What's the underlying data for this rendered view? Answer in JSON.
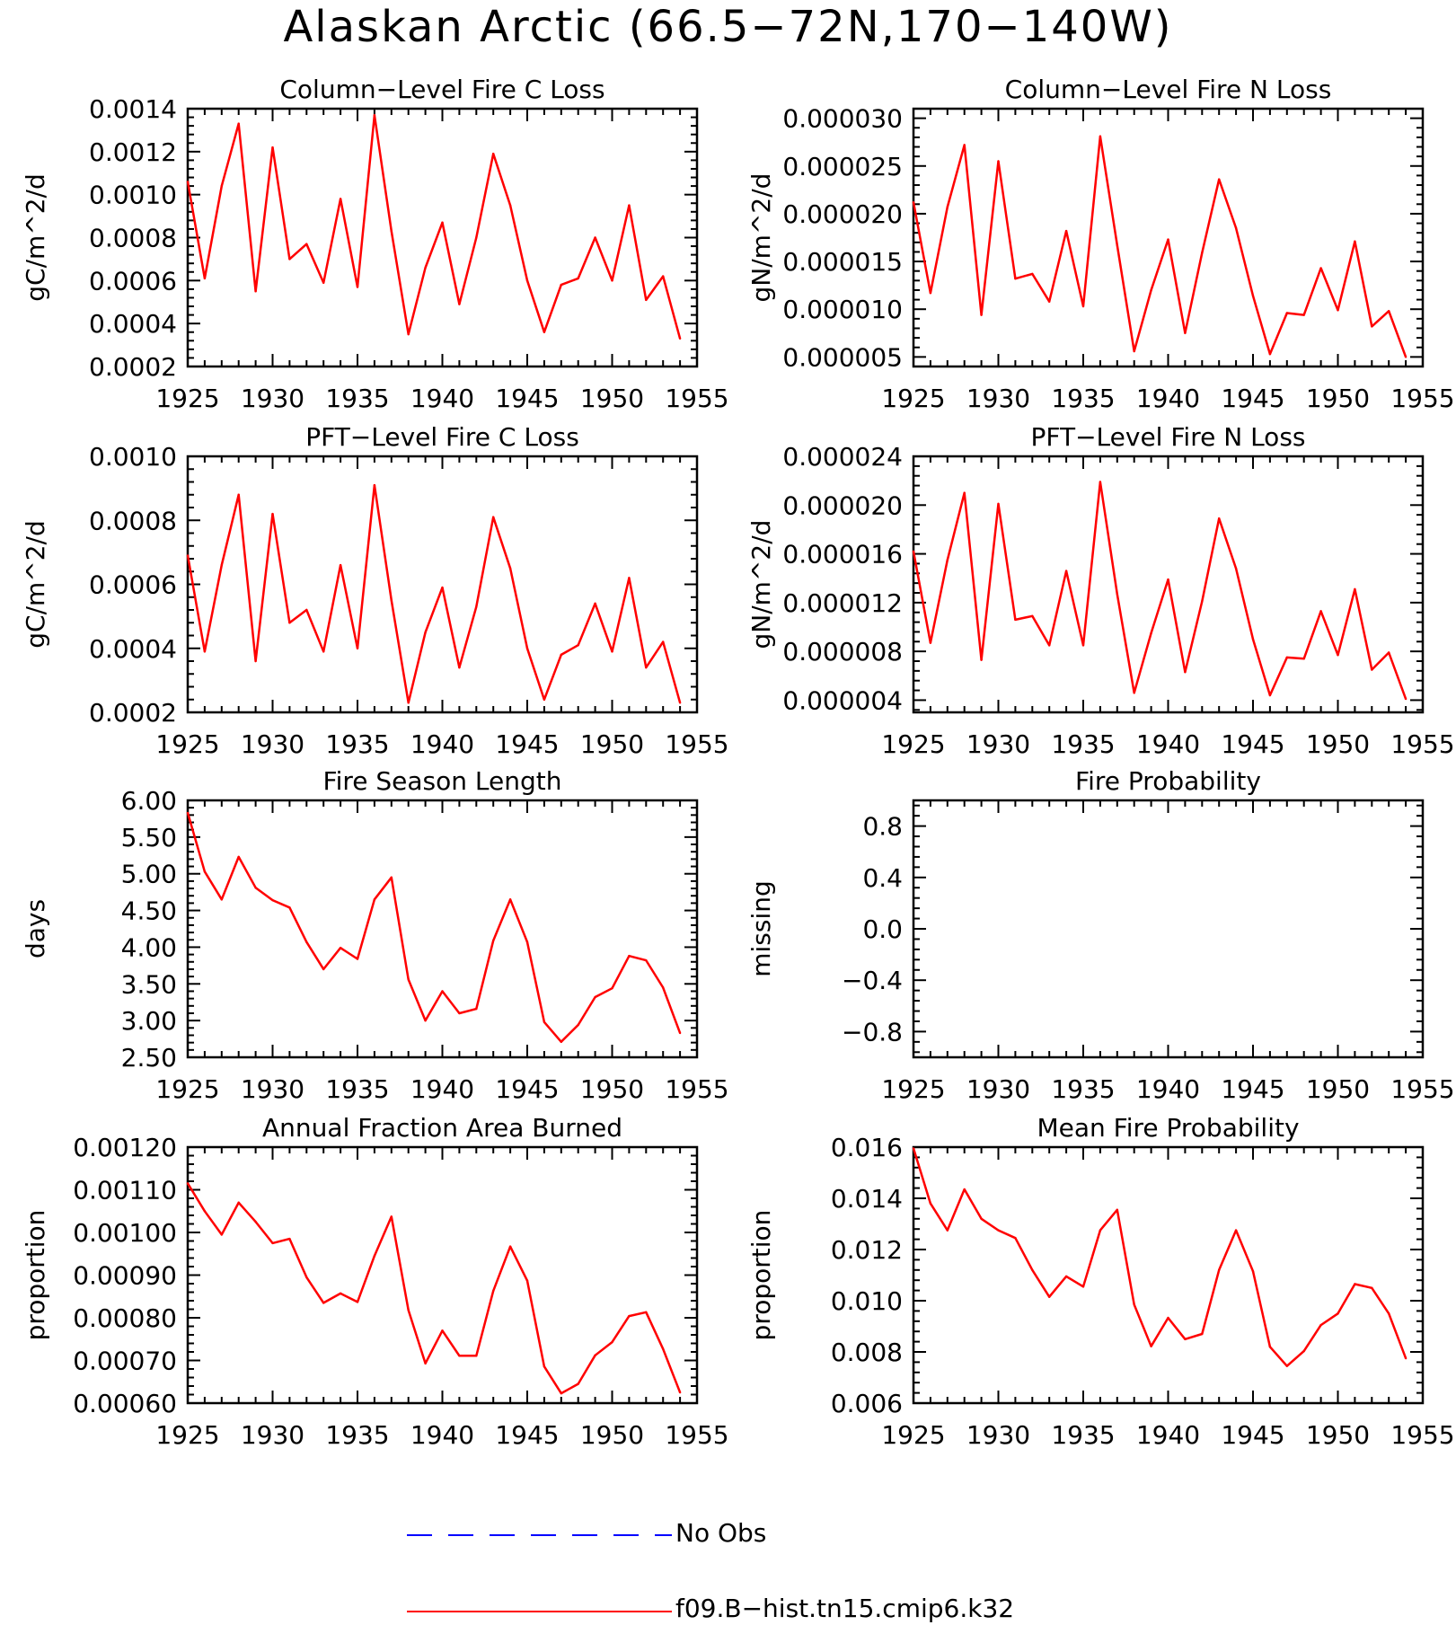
{
  "page_title": "Alaskan Arctic (66.5−72N,170−140W)",
  "colors": {
    "model": "#ff0000",
    "obs": "#0000ff",
    "axis": "#000000"
  },
  "legend": {
    "obs_label": "No Obs",
    "model_label": "f09.B−hist.tn15.cmip6.k32"
  },
  "chart_data": [
    {
      "type": "line",
      "title": "Column−Level Fire C Loss",
      "ylabel": "gC/m^2/d",
      "xlim": [
        1925,
        1955
      ],
      "xticks": [
        1925,
        1930,
        1935,
        1940,
        1945,
        1950,
        1955
      ],
      "ylim": [
        0.0002,
        0.0014
      ],
      "yticks": [
        0.0002,
        0.0004,
        0.0006,
        0.0008,
        0.001,
        0.0012,
        0.0014
      ],
      "ytick_labels": [
        "0.0002",
        "0.0004",
        "0.0006",
        "0.0008",
        "0.0010",
        "0.0012",
        "0.0014"
      ],
      "x": [
        1925,
        1926,
        1927,
        1928,
        1929,
        1930,
        1931,
        1932,
        1933,
        1934,
        1935,
        1936,
        1937,
        1938,
        1939,
        1940,
        1941,
        1942,
        1943,
        1944,
        1945,
        1946,
        1947,
        1948,
        1949,
        1950,
        1951,
        1952,
        1953,
        1954
      ],
      "series": [
        {
          "values": [
            0.00106,
            0.00061,
            0.00104,
            0.00133,
            0.00055,
            0.00122,
            0.0007,
            0.00077,
            0.00059,
            0.00098,
            0.00057,
            0.00137,
            0.00083,
            0.00035,
            0.00066,
            0.00087,
            0.00049,
            0.0008,
            0.00119,
            0.00095,
            0.0006,
            0.00036,
            0.00058,
            0.00061,
            0.0008,
            0.0006,
            0.00095,
            0.00051,
            0.00062,
            0.00033
          ]
        }
      ]
    },
    {
      "type": "line",
      "title": "Column−Level Fire N Loss",
      "ylabel": "gN/m^2/d",
      "xlim": [
        1925,
        1955
      ],
      "xticks": [
        1925,
        1930,
        1935,
        1940,
        1945,
        1950,
        1955
      ],
      "ylim": [
        4e-06,
        3.1e-05
      ],
      "yticks": [
        5e-06,
        1e-05,
        1.5e-05,
        2e-05,
        2.5e-05,
        3e-05
      ],
      "ytick_labels": [
        "0.000005",
        "0.000010",
        "0.000015",
        "0.000020",
        "0.000025",
        "0.000030"
      ],
      "x": [
        1925,
        1926,
        1927,
        1928,
        1929,
        1930,
        1931,
        1932,
        1933,
        1934,
        1935,
        1936,
        1937,
        1938,
        1939,
        1940,
        1941,
        1942,
        1943,
        1944,
        1945,
        1946,
        1947,
        1948,
        1949,
        1950,
        1951,
        1952,
        1953,
        1954
      ],
      "series": [
        {
          "values": [
            2.12e-05,
            1.17e-05,
            2.07e-05,
            2.72e-05,
            9.4e-06,
            2.55e-05,
            1.32e-05,
            1.37e-05,
            1.08e-05,
            1.82e-05,
            1.03e-05,
            2.81e-05,
            1.67e-05,
            5.6e-06,
            1.2e-05,
            1.73e-05,
            7.5e-06,
            1.59e-05,
            2.36e-05,
            1.85e-05,
            1.14e-05,
            5.3e-06,
            9.6e-06,
            9.4e-06,
            1.43e-05,
            9.9e-06,
            1.71e-05,
            8.2e-06,
            9.8e-06,
            5e-06
          ]
        }
      ]
    },
    {
      "type": "line",
      "title": "PFT−Level Fire C Loss",
      "ylabel": "gC/m^2/d",
      "xlim": [
        1925,
        1955
      ],
      "xticks": [
        1925,
        1930,
        1935,
        1940,
        1945,
        1950,
        1955
      ],
      "ylim": [
        0.0002,
        0.001
      ],
      "yticks": [
        0.0002,
        0.0004,
        0.0006,
        0.0008,
        0.001
      ],
      "ytick_labels": [
        "0.0002",
        "0.0004",
        "0.0006",
        "0.0008",
        "0.0010"
      ],
      "x": [
        1925,
        1926,
        1927,
        1928,
        1929,
        1930,
        1931,
        1932,
        1933,
        1934,
        1935,
        1936,
        1937,
        1938,
        1939,
        1940,
        1941,
        1942,
        1943,
        1944,
        1945,
        1946,
        1947,
        1948,
        1949,
        1950,
        1951,
        1952,
        1953,
        1954
      ],
      "series": [
        {
          "values": [
            0.00069,
            0.00039,
            0.00066,
            0.00088,
            0.00036,
            0.00082,
            0.00048,
            0.00052,
            0.00039,
            0.00066,
            0.0004,
            0.00091,
            0.00055,
            0.00023,
            0.00045,
            0.00059,
            0.00034,
            0.00053,
            0.00081,
            0.00065,
            0.0004,
            0.00024,
            0.00038,
            0.00041,
            0.00054,
            0.00039,
            0.00062,
            0.00034,
            0.00042,
            0.00023
          ]
        }
      ]
    },
    {
      "type": "line",
      "title": "PFT−Level Fire N Loss",
      "ylabel": "gN/m^2/d",
      "xlim": [
        1925,
        1955
      ],
      "xticks": [
        1925,
        1930,
        1935,
        1940,
        1945,
        1950,
        1955
      ],
      "ylim": [
        3e-06,
        2.4e-05
      ],
      "yticks": [
        4e-06,
        8e-06,
        1.2e-05,
        1.6e-05,
        2e-05,
        2.4e-05
      ],
      "ytick_labels": [
        "0.000004",
        "0.000008",
        "0.000012",
        "0.000016",
        "0.000020",
        "0.000024"
      ],
      "x": [
        1925,
        1926,
        1927,
        1928,
        1929,
        1930,
        1931,
        1932,
        1933,
        1934,
        1935,
        1936,
        1937,
        1938,
        1939,
        1940,
        1941,
        1942,
        1943,
        1944,
        1945,
        1946,
        1947,
        1948,
        1949,
        1950,
        1951,
        1952,
        1953,
        1954
      ],
      "series": [
        {
          "values": [
            1.62e-05,
            8.7e-06,
            1.55e-05,
            2.1e-05,
            7.3e-06,
            2.01e-05,
            1.06e-05,
            1.09e-05,
            8.5e-06,
            1.46e-05,
            8.5e-06,
            2.19e-05,
            1.27e-05,
            4.6e-06,
            9.5e-06,
            1.39e-05,
            6.3e-06,
            1.21e-05,
            1.89e-05,
            1.48e-05,
            9e-06,
            4.4e-06,
            7.5e-06,
            7.4e-06,
            1.13e-05,
            7.7e-06,
            1.31e-05,
            6.5e-06,
            7.9e-06,
            4.1e-06
          ]
        }
      ]
    },
    {
      "type": "line",
      "title": "Fire Season Length",
      "ylabel": "days",
      "xlim": [
        1925,
        1955
      ],
      "xticks": [
        1925,
        1930,
        1935,
        1940,
        1945,
        1950,
        1955
      ],
      "ylim": [
        2.5,
        6.0
      ],
      "yticks": [
        2.5,
        3.0,
        3.5,
        4.0,
        4.5,
        5.0,
        5.5,
        6.0
      ],
      "ytick_labels": [
        "2.50",
        "3.00",
        "3.50",
        "4.00",
        "4.50",
        "5.00",
        "5.50",
        "6.00"
      ],
      "x": [
        1925,
        1926,
        1927,
        1928,
        1929,
        1930,
        1931,
        1932,
        1933,
        1934,
        1935,
        1936,
        1937,
        1938,
        1939,
        1940,
        1941,
        1942,
        1943,
        1944,
        1945,
        1946,
        1947,
        1948,
        1949,
        1950,
        1951,
        1952,
        1953,
        1954
      ],
      "series": [
        {
          "values": [
            5.83,
            5.03,
            4.65,
            5.23,
            4.81,
            4.64,
            4.54,
            4.07,
            3.7,
            3.99,
            3.84,
            4.65,
            4.95,
            3.56,
            3.0,
            3.4,
            3.1,
            3.16,
            4.09,
            4.65,
            4.07,
            2.98,
            2.71,
            2.94,
            3.32,
            3.44,
            3.88,
            3.82,
            3.45,
            2.83
          ]
        }
      ]
    },
    {
      "type": "line",
      "title": "Fire Probability",
      "ylabel": "missing",
      "xlim": [
        1925,
        1955
      ],
      "xticks": [
        1925,
        1930,
        1935,
        1940,
        1945,
        1950,
        1955
      ],
      "ylim": [
        -1.0,
        1.0
      ],
      "yticks": [
        -0.8,
        -0.4,
        0.0,
        0.4,
        0.8
      ],
      "ytick_labels": [
        "−0.8",
        "−0.4",
        "0.0",
        "0.4",
        "0.8"
      ],
      "x": [],
      "series": []
    },
    {
      "type": "line",
      "title": "Annual Fraction Area Burned",
      "ylabel": "proportion",
      "xlim": [
        1925,
        1955
      ],
      "xticks": [
        1925,
        1930,
        1935,
        1940,
        1945,
        1950,
        1955
      ],
      "ylim": [
        0.0006,
        0.0012
      ],
      "yticks": [
        0.0006,
        0.0007,
        0.0008,
        0.0009,
        0.001,
        0.0011,
        0.0012
      ],
      "ytick_labels": [
        "0.00060",
        "0.00070",
        "0.00080",
        "0.00090",
        "0.00100",
        "0.00110",
        "0.00120"
      ],
      "x": [
        1925,
        1926,
        1927,
        1928,
        1929,
        1930,
        1931,
        1932,
        1933,
        1934,
        1935,
        1936,
        1937,
        1938,
        1939,
        1940,
        1941,
        1942,
        1943,
        1944,
        1945,
        1946,
        1947,
        1948,
        1949,
        1950,
        1951,
        1952,
        1953,
        1954
      ],
      "series": [
        {
          "values": [
            0.001115,
            0.00105,
            0.000995,
            0.00107,
            0.001025,
            0.000975,
            0.000985,
            0.000895,
            0.000835,
            0.000857,
            0.000837,
            0.000945,
            0.001037,
            0.000818,
            0.000693,
            0.00077,
            0.000711,
            0.000711,
            0.000863,
            0.000967,
            0.000887,
            0.000686,
            0.000623,
            0.000645,
            0.000712,
            0.000743,
            0.000804,
            0.000813,
            0.000727,
            0.000625
          ]
        }
      ]
    },
    {
      "type": "line",
      "title": "Mean Fire Probability",
      "ylabel": "proportion",
      "xlim": [
        1925,
        1955
      ],
      "xticks": [
        1925,
        1930,
        1935,
        1940,
        1945,
        1950,
        1955
      ],
      "ylim": [
        0.006,
        0.016
      ],
      "yticks": [
        0.006,
        0.008,
        0.01,
        0.012,
        0.014,
        0.016
      ],
      "ytick_labels": [
        "0.006",
        "0.008",
        "0.010",
        "0.012",
        "0.014",
        "0.016"
      ],
      "x": [
        1925,
        1926,
        1927,
        1928,
        1929,
        1930,
        1931,
        1932,
        1933,
        1934,
        1935,
        1936,
        1937,
        1938,
        1939,
        1940,
        1941,
        1942,
        1943,
        1944,
        1945,
        1946,
        1947,
        1948,
        1949,
        1950,
        1951,
        1952,
        1953,
        1954
      ],
      "series": [
        {
          "values": [
            0.01595,
            0.0138,
            0.01275,
            0.01435,
            0.0132,
            0.01275,
            0.01245,
            0.0112,
            0.01015,
            0.01095,
            0.01055,
            0.01275,
            0.01355,
            0.00985,
            0.00822,
            0.00933,
            0.0085,
            0.0087,
            0.0112,
            0.01275,
            0.01115,
            0.0082,
            0.00745,
            0.00803,
            0.00905,
            0.0095,
            0.01065,
            0.0105,
            0.0095,
            0.00775
          ]
        }
      ]
    }
  ]
}
